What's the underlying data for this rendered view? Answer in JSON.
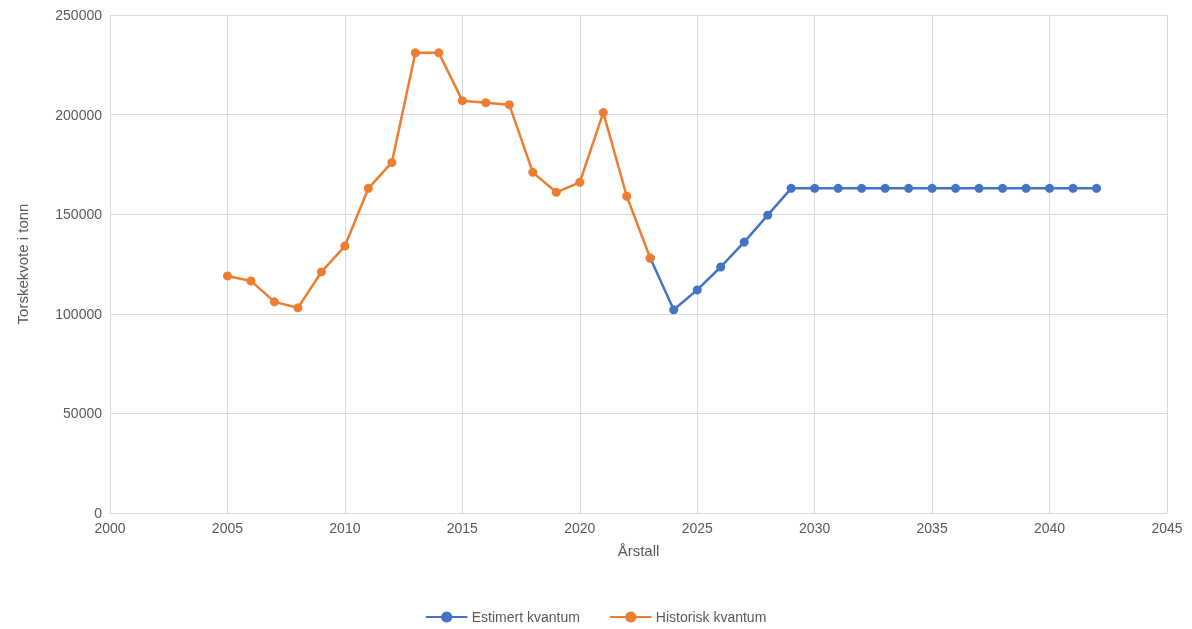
{
  "chart_data": {
    "type": "line",
    "xlabel": "Årstall",
    "ylabel": "Torskekvote i tonn",
    "xlim": [
      2000,
      2045
    ],
    "xticks": [
      2000,
      2005,
      2010,
      2015,
      2020,
      2025,
      2030,
      2035,
      2040,
      2045
    ],
    "ylim": [
      0,
      250000
    ],
    "yticks": [
      0,
      50000,
      100000,
      150000,
      200000,
      250000
    ],
    "grid": true,
    "legend": "bottom",
    "marker": "circle",
    "line_style": "solid",
    "series": [
      {
        "name": "Estimert kvantum",
        "color": "#4472c4",
        "x": [
          2023,
          2024,
          2025,
          2026,
          2027,
          2028,
          2029,
          2030,
          2031,
          2032,
          2033,
          2034,
          2035,
          2036,
          2037,
          2038,
          2039,
          2040,
          2041,
          2042
        ],
        "values": [
          128000,
          102000,
          112000,
          123500,
          136000,
          149500,
          163000,
          163000,
          163000,
          163000,
          163000,
          163000,
          163000,
          163000,
          163000,
          163000,
          163000,
          163000,
          163000,
          163000
        ]
      },
      {
        "name": "Historisk kvantum",
        "color": "#ed7d31",
        "x": [
          2005,
          2006,
          2007,
          2008,
          2009,
          2010,
          2011,
          2012,
          2013,
          2014,
          2015,
          2016,
          2017,
          2018,
          2019,
          2020,
          2021,
          2022,
          2023
        ],
        "values": [
          119000,
          116500,
          106000,
          103000,
          121000,
          134000,
          163000,
          176000,
          231000,
          231000,
          207000,
          206000,
          205000,
          171000,
          161000,
          166000,
          201000,
          159000,
          128000
        ]
      }
    ]
  }
}
